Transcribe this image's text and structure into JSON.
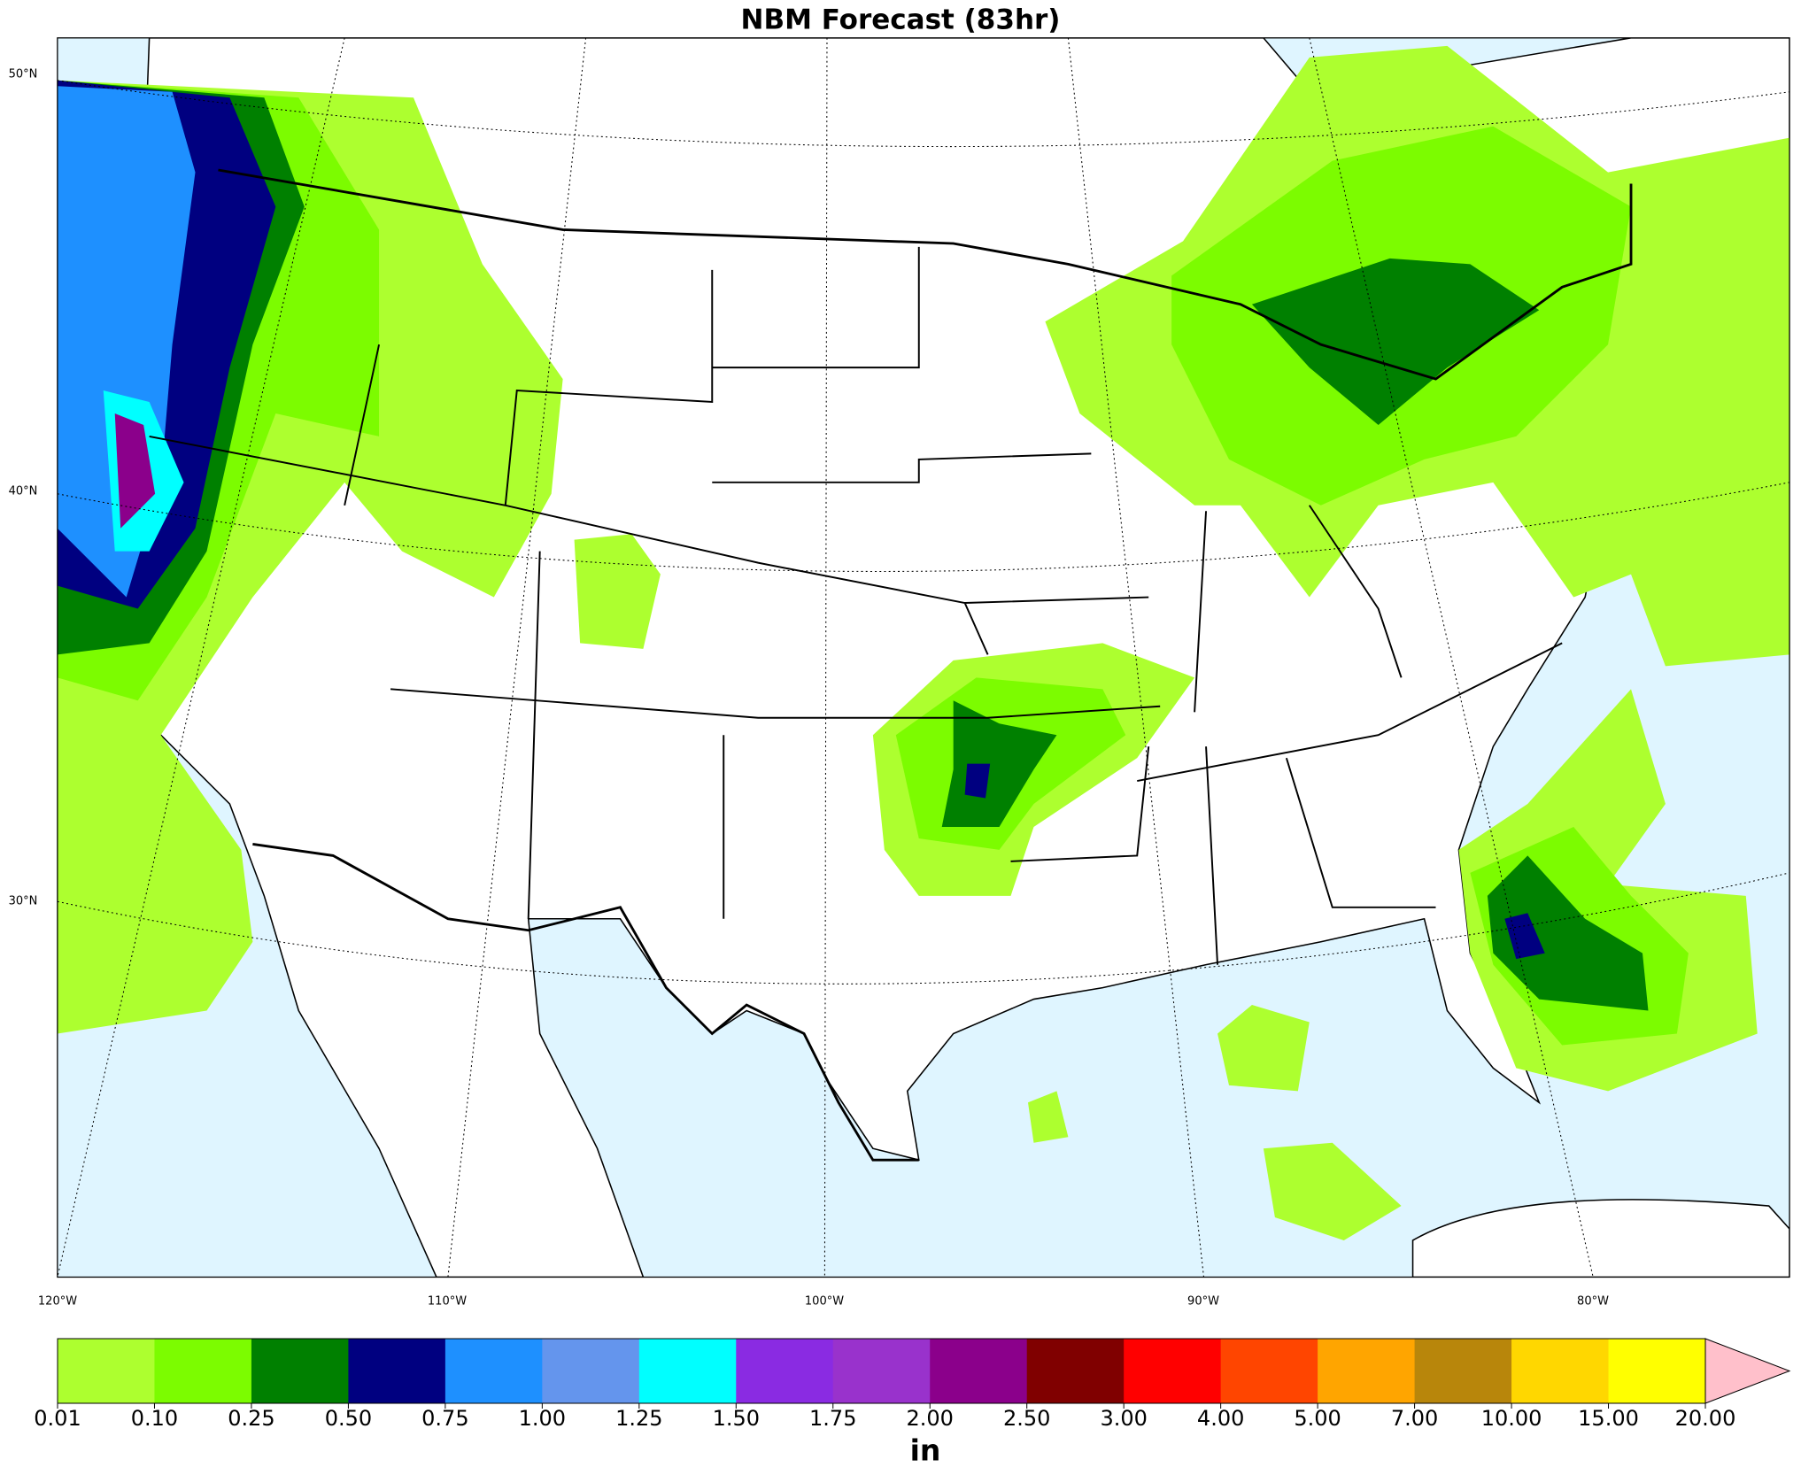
{
  "title": "NBM Forecast (83hr)",
  "map": {
    "lat_labels": [
      "50°N",
      "40°N",
      "30°N"
    ],
    "lon_labels": [
      "120°W",
      "110°W",
      "100°W",
      "90°W",
      "80°W"
    ]
  },
  "colorbar": {
    "unit": "in",
    "ticks": [
      {
        "value": 0.01,
        "label": "0.01"
      },
      {
        "value": 0.1,
        "label": "0.10"
      },
      {
        "value": 0.25,
        "label": "0.25"
      },
      {
        "value": 0.5,
        "label": "0.50"
      },
      {
        "value": 0.75,
        "label": "0.75"
      },
      {
        "value": 1,
        "label": "1.00"
      },
      {
        "value": 1.25,
        "label": "1.25"
      },
      {
        "value": 1.5,
        "label": "1.50"
      },
      {
        "value": 1.75,
        "label": "1.75"
      },
      {
        "value": 2,
        "label": "2.00"
      },
      {
        "value": 2.5,
        "label": "2.50"
      },
      {
        "value": 3,
        "label": "3.00"
      },
      {
        "value": 4,
        "label": "4.00"
      },
      {
        "value": 5,
        "label": "5.00"
      },
      {
        "value": 7,
        "label": "7.00"
      },
      {
        "value": 10,
        "label": "10.00"
      },
      {
        "value": 15,
        "label": "15.00"
      },
      {
        "value": 20,
        "label": "20.00"
      }
    ],
    "colors": [
      "#adff2f",
      "#7cfc00",
      "#008000",
      "#000080",
      "#1e90ff",
      "#6495ed",
      "#00ffff",
      "#8a2be2",
      "#9932cc",
      "#8b008b",
      "#800000",
      "#ff0000",
      "#ff4500",
      "#ffa500",
      "#b8860b",
      "#ffd700",
      "#ffff00"
    ],
    "over_color": "#ffc0cb"
  }
}
